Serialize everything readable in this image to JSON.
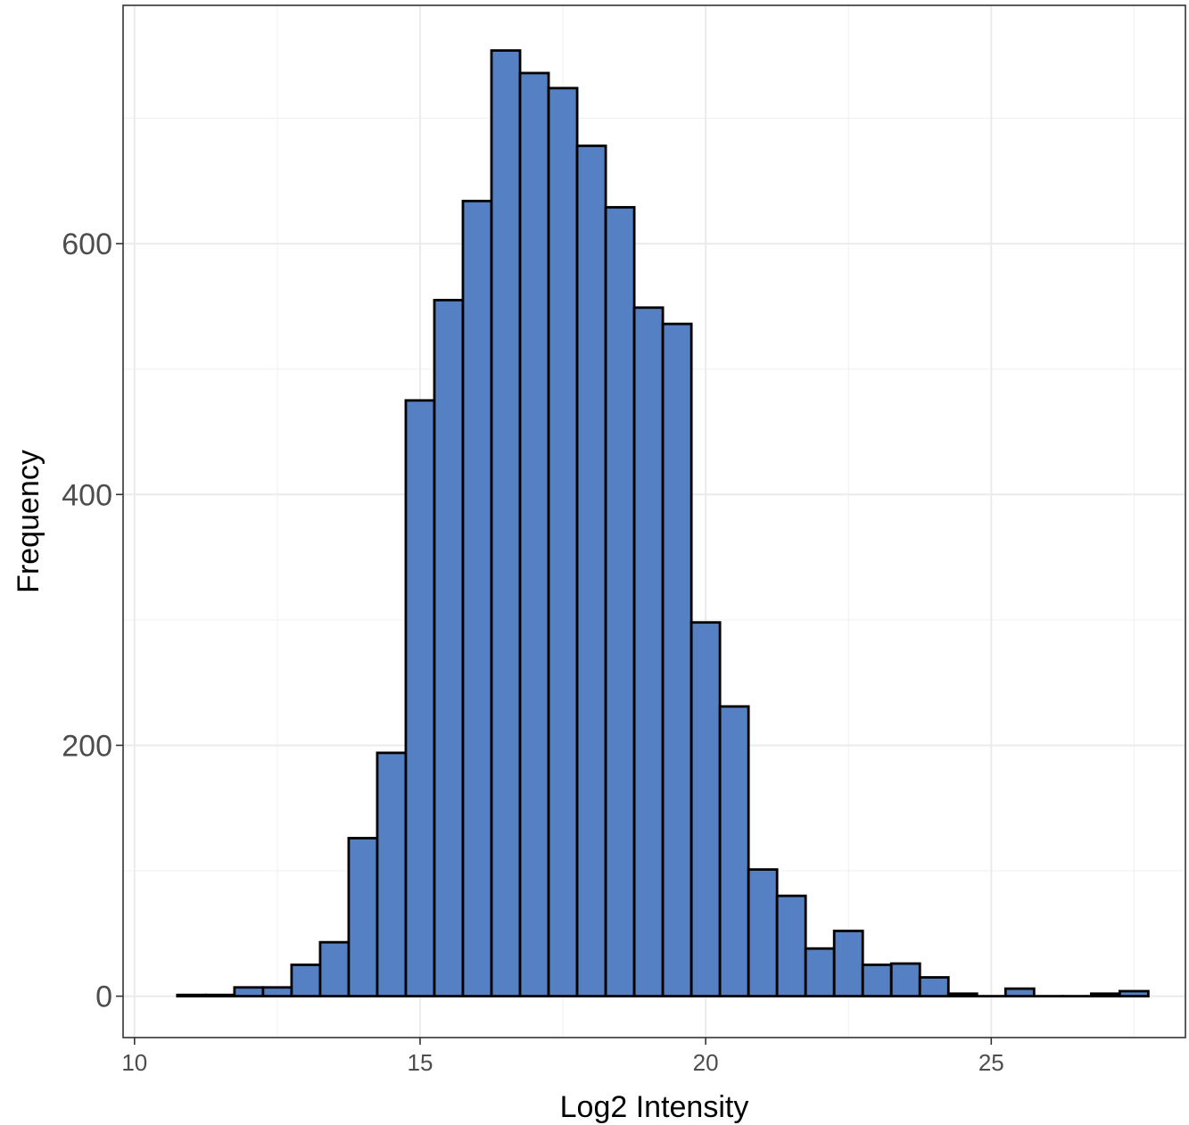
{
  "chart_data": {
    "type": "bar",
    "xlabel": "Log2 Intensity",
    "ylabel": "Frequency",
    "xlim": [
      9.8,
      28.4
    ],
    "ylim": [
      -33,
      790
    ],
    "x_ticks": [
      "10",
      "15",
      "20",
      "25"
    ],
    "y_ticks": [
      "0",
      "200",
      "400",
      "600"
    ],
    "grid": true,
    "bin_width": 0.5,
    "bins_start": [
      10.75,
      11.25,
      11.75,
      12.25,
      12.75,
      13.25,
      13.75,
      14.25,
      14.75,
      15.25,
      15.75,
      16.25,
      16.75,
      17.25,
      17.75,
      18.25,
      18.75,
      19.25,
      19.75,
      20.25,
      20.75,
      21.25,
      21.75,
      22.25,
      22.75,
      23.25,
      23.75,
      24.25,
      24.75,
      25.25,
      25.75,
      26.25,
      26.75,
      27.25
    ],
    "values": [
      1,
      1,
      7,
      7,
      25,
      43,
      126,
      194,
      475,
      555,
      634,
      754,
      736,
      724,
      678,
      629,
      549,
      536,
      298,
      231,
      101,
      80,
      38,
      52,
      25,
      26,
      15,
      2,
      0,
      6,
      0,
      0,
      2,
      4
    ],
    "fill_color": "#5580c4",
    "edge_color": "#000000",
    "panel_border": true
  }
}
